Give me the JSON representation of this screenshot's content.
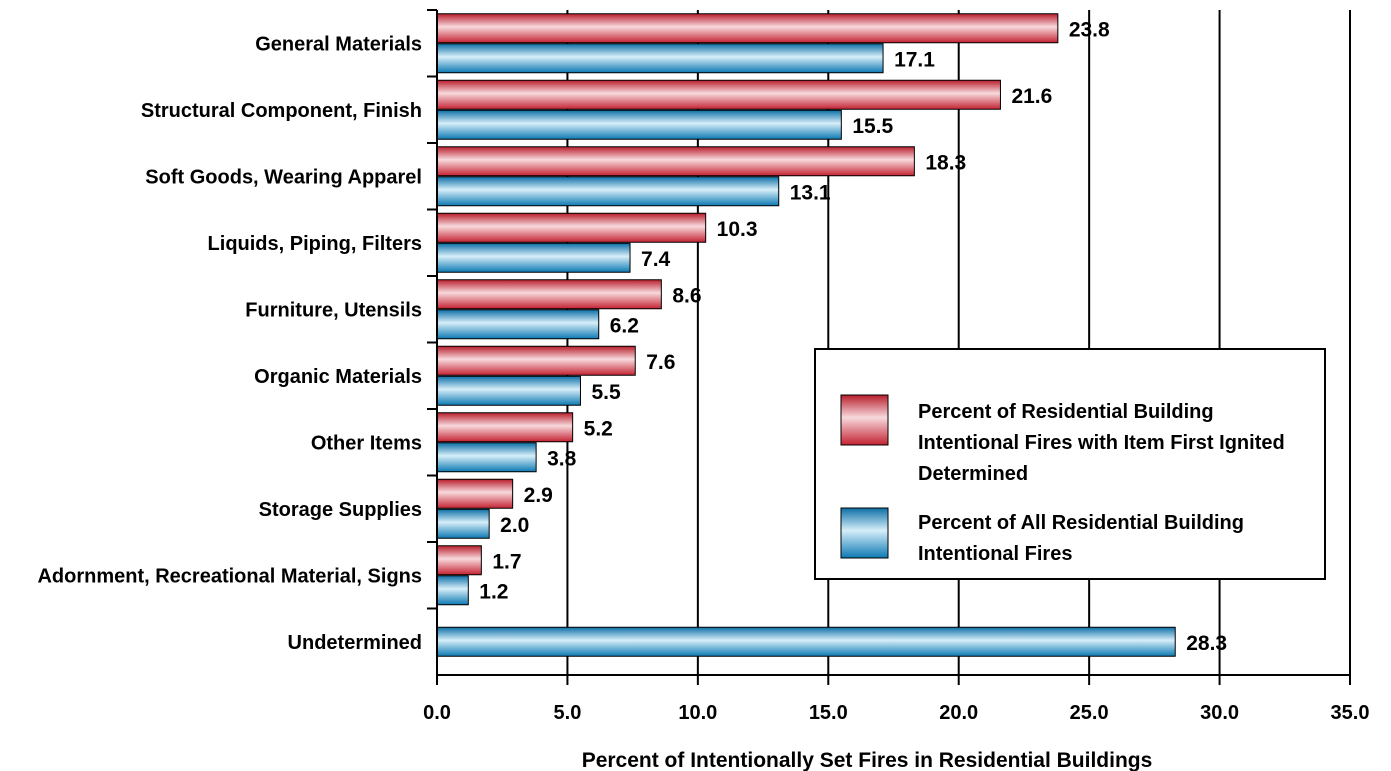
{
  "chart_data": {
    "type": "bar",
    "orientation": "horizontal",
    "title": "",
    "xlabel": "Percent of Intentionally Set Fires in Residential Buildings",
    "ylabel": "",
    "xlim": [
      0,
      35
    ],
    "xticks": [
      "0.0",
      "5.0",
      "10.0",
      "15.0",
      "20.0",
      "25.0",
      "30.0",
      "35.0"
    ],
    "grid": "vertical",
    "legend_position": "lower-right",
    "categories": [
      "General Materials",
      "Structural Component, Finish",
      "Soft Goods, Wearing Apparel",
      "Liquids, Piping, Filters",
      "Furniture, Utensils",
      "Organic Materials",
      "Other Items",
      "Storage Supplies",
      "Adornment, Recreational Material, Signs",
      "Undetermined"
    ],
    "series": [
      {
        "name": "Percent of Residential Building Intentional Fires with Item First Ignited Determined",
        "legend_lines": [
          "Percent of Residential Building",
          "Intentional Fires with Item First Ignited",
          "Determined"
        ],
        "color": "#d9323f",
        "values": [
          23.8,
          21.6,
          18.3,
          10.3,
          8.6,
          7.6,
          5.2,
          2.9,
          1.7,
          null
        ],
        "labels": [
          "23.8",
          "21.6",
          "18.3",
          "10.3",
          "8.6",
          "7.6",
          "5.2",
          "2.9",
          "1.7",
          ""
        ]
      },
      {
        "name": "Percent of All Residential Building Intentional Fires",
        "legend_lines": [
          "Percent of All Residential Building",
          "Intentional Fires"
        ],
        "color": "#1c8cc4",
        "values": [
          17.1,
          15.5,
          13.1,
          7.4,
          6.2,
          5.5,
          3.8,
          2.0,
          1.2,
          28.3
        ],
        "labels": [
          "17.1",
          "15.5",
          "13.1",
          "7.4",
          "6.2",
          "5.5",
          "3.8",
          "2.0",
          "1.2",
          "28.3"
        ]
      }
    ]
  }
}
